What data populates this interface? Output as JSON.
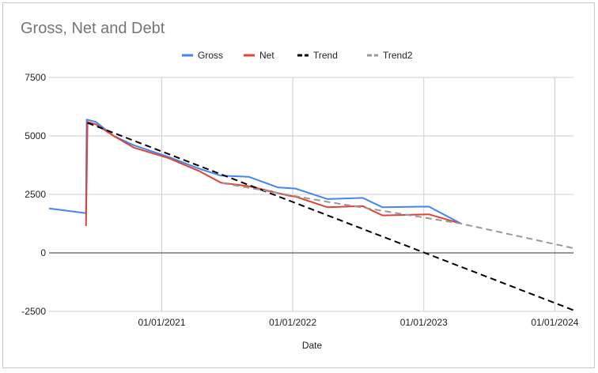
{
  "chart_data": {
    "type": "line",
    "title": "Gross, Net and Debt",
    "xlabel": "Date",
    "ylabel": "",
    "ylim": [
      -2500,
      7500
    ],
    "xlim": [
      "2020-02-22",
      "2024-02-22"
    ],
    "yticks": [
      -2500,
      0,
      2500,
      5000,
      7500
    ],
    "xticks": [
      "2021-01-01",
      "2022-01-01",
      "2023-01-01",
      "2024-01-01"
    ],
    "xtick_labels": [
      "01/01/2021",
      "01/01/2022",
      "01/01/2023",
      "01/01/2024"
    ],
    "grid": true,
    "legend_position": "top",
    "series": [
      {
        "name": "Gross",
        "color": "#4285f4",
        "dash": "solid",
        "points": [
          [
            "2020-02-22",
            1900
          ],
          [
            "2020-06-04",
            1700
          ],
          [
            "2020-06-06",
            5700
          ],
          [
            "2020-07-01",
            5600
          ],
          [
            "2020-08-20",
            5000
          ],
          [
            "2020-10-15",
            4600
          ],
          [
            "2021-01-20",
            4100
          ],
          [
            "2021-04-15",
            3600
          ],
          [
            "2021-06-15",
            3300
          ],
          [
            "2021-09-01",
            3250
          ],
          [
            "2021-11-20",
            2800
          ],
          [
            "2022-01-08",
            2750
          ],
          [
            "2022-04-08",
            2300
          ],
          [
            "2022-07-15",
            2350
          ],
          [
            "2022-09-08",
            1950
          ],
          [
            "2023-01-15",
            1980
          ],
          [
            "2023-04-15",
            1250
          ]
        ]
      },
      {
        "name": "Net",
        "color": "#db4437",
        "dash": "solid",
        "points": [
          [
            "2020-06-04",
            1150
          ],
          [
            "2020-06-08",
            5600
          ],
          [
            "2020-07-01",
            5500
          ],
          [
            "2020-08-20",
            5000
          ],
          [
            "2020-10-15",
            4500
          ],
          [
            "2021-01-20",
            4050
          ],
          [
            "2021-04-15",
            3500
          ],
          [
            "2021-06-15",
            3000
          ],
          [
            "2021-09-01",
            2850
          ],
          [
            "2021-12-20",
            2450
          ],
          [
            "2022-01-10",
            2400
          ],
          [
            "2022-04-08",
            1950
          ],
          [
            "2022-07-15",
            2000
          ],
          [
            "2022-09-08",
            1600
          ],
          [
            "2023-01-15",
            1650
          ],
          [
            "2023-04-15",
            1250
          ]
        ]
      },
      {
        "name": "Trend",
        "color": "#000000",
        "dash": "dashed",
        "points": [
          [
            "2020-06-08",
            5560
          ],
          [
            "2024-02-22",
            -2450
          ]
        ]
      },
      {
        "name": "Trend2",
        "color": "#999999",
        "dash": "dashed",
        "points": [
          [
            "2021-06-20",
            2980
          ],
          [
            "2022-04-01",
            2200
          ],
          [
            "2023-04-15",
            1250
          ],
          [
            "2024-02-22",
            200
          ]
        ]
      }
    ]
  }
}
